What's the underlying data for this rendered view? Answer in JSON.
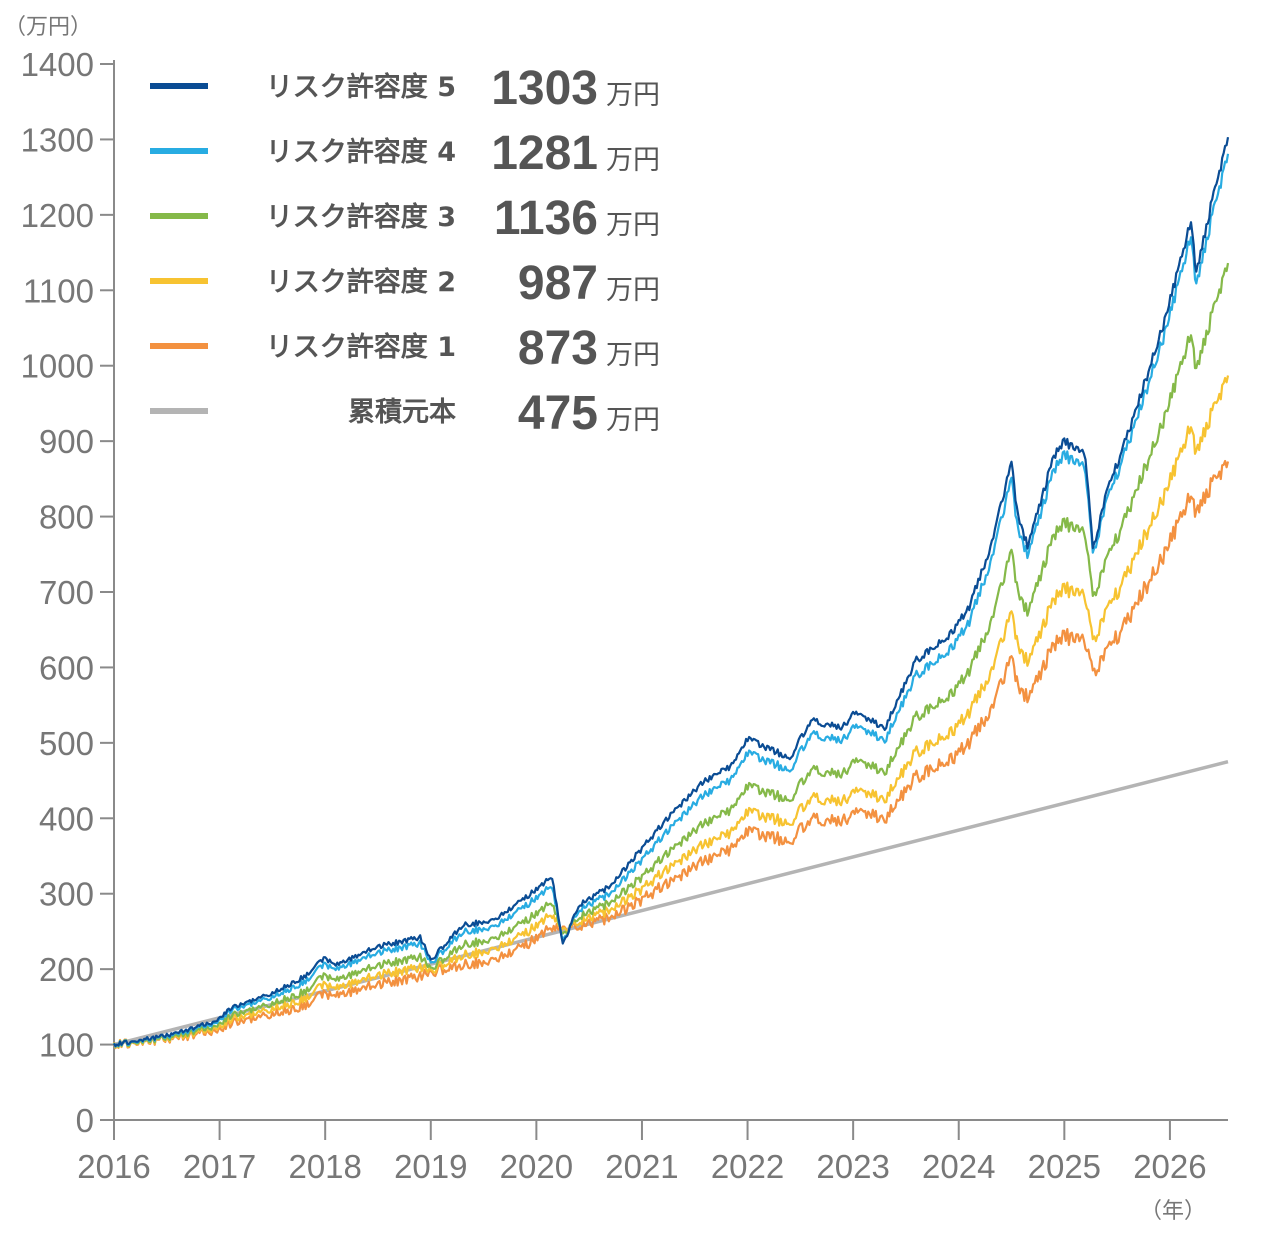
{
  "chart_data": {
    "type": "line",
    "ylabel": "（万円）",
    "xlabel": "（年）",
    "ylim": [
      0,
      1400
    ],
    "yticks": [
      0,
      100,
      200,
      300,
      400,
      500,
      600,
      700,
      800,
      900,
      1000,
      1100,
      1200,
      1300,
      1400
    ],
    "xticks": [
      "2016",
      "2017",
      "2018",
      "2019",
      "2020",
      "2021",
      "2022",
      "2023",
      "2024",
      "2025",
      "2026"
    ],
    "xlim": [
      2016,
      2026.55
    ],
    "grid": false,
    "legend_position": "top-left",
    "value_unit": "万円",
    "principal": {
      "name": "累積元本",
      "final": "475",
      "color": "#b4b4b4",
      "x": [
        2016,
        2026.55
      ],
      "values": [
        100,
        475
      ]
    },
    "series": [
      {
        "name": "リスク許容度 5",
        "final": "1303",
        "color": "#0a4c94",
        "x": [
          2016,
          2016.5,
          2016.95,
          2017.1,
          2017.5,
          2017.8,
          2018.0,
          2018.1,
          2018.5,
          2018.9,
          2019.0,
          2019.3,
          2019.6,
          2019.9,
          2020.15,
          2020.25,
          2020.4,
          2020.7,
          2021.0,
          2021.3,
          2021.6,
          2021.85,
          2022.0,
          2022.4,
          2022.6,
          2022.9,
          2023.0,
          2023.3,
          2023.6,
          2023.9,
          2024.1,
          2024.3,
          2024.5,
          2024.55,
          2024.65,
          2024.9,
          2025.0,
          2025.2,
          2025.27,
          2025.4,
          2025.7,
          2025.95,
          2026.1,
          2026.2,
          2026.25,
          2026.4,
          2026.55
        ],
        "values": [
          100,
          112,
          130,
          148,
          168,
          190,
          215,
          205,
          230,
          242,
          212,
          258,
          265,
          295,
          322,
          232,
          285,
          310,
          360,
          410,
          450,
          470,
          505,
          480,
          530,
          520,
          540,
          520,
          610,
          640,
          680,
          760,
          870,
          810,
          760,
          880,
          900,
          880,
          755,
          830,
          950,
          1060,
          1140,
          1190,
          1120,
          1220,
          1303
        ]
      },
      {
        "name": "リスク許容度 4",
        "final": "1281",
        "color": "#28ace2",
        "x": [
          2016,
          2016.5,
          2016.95,
          2017.1,
          2017.5,
          2017.8,
          2018.0,
          2018.1,
          2018.5,
          2018.9,
          2019.0,
          2019.3,
          2019.6,
          2019.9,
          2020.15,
          2020.25,
          2020.4,
          2020.7,
          2021.0,
          2021.3,
          2021.6,
          2021.85,
          2022.0,
          2022.4,
          2022.6,
          2022.9,
          2023.0,
          2023.3,
          2023.6,
          2023.9,
          2024.1,
          2024.3,
          2024.5,
          2024.55,
          2024.65,
          2024.9,
          2025.0,
          2025.2,
          2025.27,
          2025.4,
          2025.7,
          2025.95,
          2026.1,
          2026.2,
          2026.25,
          2026.4,
          2026.55
        ],
        "values": [
          100,
          111,
          128,
          145,
          163,
          183,
          207,
          199,
          222,
          234,
          208,
          249,
          256,
          284,
          310,
          236,
          279,
          300,
          345,
          393,
          432,
          452,
          486,
          464,
          512,
          503,
          522,
          504,
          590,
          620,
          660,
          740,
          848,
          792,
          748,
          862,
          882,
          862,
          748,
          818,
          935,
          1043,
          1121,
          1170,
          1103,
          1200,
          1281
        ]
      },
      {
        "name": "リスク許容度 3",
        "final": "1136",
        "color": "#85b949",
        "x": [
          2016,
          2016.5,
          2016.95,
          2017.1,
          2017.5,
          2017.8,
          2018.0,
          2018.1,
          2018.5,
          2018.9,
          2019.0,
          2019.3,
          2019.6,
          2019.9,
          2020.15,
          2020.25,
          2020.4,
          2020.7,
          2021.0,
          2021.3,
          2021.6,
          2021.85,
          2022.0,
          2022.4,
          2022.6,
          2022.9,
          2023.0,
          2023.3,
          2023.6,
          2023.9,
          2024.1,
          2024.3,
          2024.5,
          2024.55,
          2024.65,
          2024.9,
          2025.0,
          2025.2,
          2025.27,
          2025.4,
          2025.7,
          2025.95,
          2026.1,
          2026.2,
          2026.25,
          2026.4,
          2026.55
        ],
        "values": [
          100,
          109,
          124,
          138,
          154,
          170,
          192,
          185,
          205,
          216,
          201,
          232,
          240,
          264,
          288,
          244,
          270,
          288,
          322,
          362,
          394,
          412,
          442,
          425,
          465,
          458,
          476,
          462,
          535,
          560,
          595,
          660,
          752,
          708,
          672,
          775,
          792,
          775,
          690,
          740,
          840,
          932,
          1000,
          1040,
          990,
          1070,
          1136
        ]
      },
      {
        "name": "リスク許容度 2",
        "final": "987",
        "color": "#f7c331",
        "x": [
          2016,
          2016.5,
          2016.95,
          2017.1,
          2017.5,
          2017.8,
          2018.0,
          2018.1,
          2018.5,
          2018.9,
          2019.0,
          2019.3,
          2019.6,
          2019.9,
          2020.15,
          2020.25,
          2020.4,
          2020.7,
          2021.0,
          2021.3,
          2021.6,
          2021.85,
          2022.0,
          2022.4,
          2022.6,
          2022.9,
          2023.0,
          2023.3,
          2023.6,
          2023.9,
          2024.1,
          2024.3,
          2024.5,
          2024.55,
          2024.65,
          2024.9,
          2025.0,
          2025.2,
          2025.27,
          2025.4,
          2025.7,
          2025.95,
          2026.1,
          2026.2,
          2026.25,
          2026.4,
          2026.55
        ],
        "values": [
          100,
          108,
          121,
          133,
          147,
          161,
          180,
          174,
          192,
          202,
          198,
          218,
          226,
          248,
          272,
          250,
          264,
          278,
          306,
          340,
          366,
          382,
          408,
          394,
          428,
          422,
          436,
          426,
          488,
          510,
          540,
          594,
          670,
          636,
          606,
          690,
          705,
          692,
          632,
          672,
          755,
          830,
          885,
          918,
          880,
          940,
          987
        ]
      },
      {
        "name": "リスク許容度 1",
        "final": "873",
        "color": "#f39140",
        "x": [
          2016,
          2016.5,
          2016.95,
          2017.1,
          2017.5,
          2017.8,
          2018.0,
          2018.1,
          2018.5,
          2018.9,
          2019.0,
          2019.3,
          2019.6,
          2019.9,
          2020.15,
          2020.25,
          2020.4,
          2020.7,
          2021.0,
          2021.3,
          2021.6,
          2021.85,
          2022.0,
          2022.4,
          2022.6,
          2022.9,
          2023.0,
          2023.3,
          2023.6,
          2023.9,
          2024.1,
          2024.3,
          2024.5,
          2024.55,
          2024.65,
          2024.9,
          2025.0,
          2025.2,
          2025.27,
          2025.4,
          2025.7,
          2025.95,
          2026.1,
          2026.2,
          2026.25,
          2026.4,
          2026.55
        ],
        "values": [
          100,
          107,
          118,
          128,
          140,
          152,
          168,
          164,
          180,
          190,
          196,
          205,
          212,
          232,
          255,
          252,
          258,
          268,
          292,
          320,
          344,
          360,
          382,
          370,
          400,
          396,
          408,
          400,
          455,
          475,
          500,
          545,
          610,
          582,
          558,
          630,
          642,
          632,
          590,
          618,
          688,
          752,
          800,
          826,
          800,
          846,
          873
        ]
      }
    ]
  }
}
